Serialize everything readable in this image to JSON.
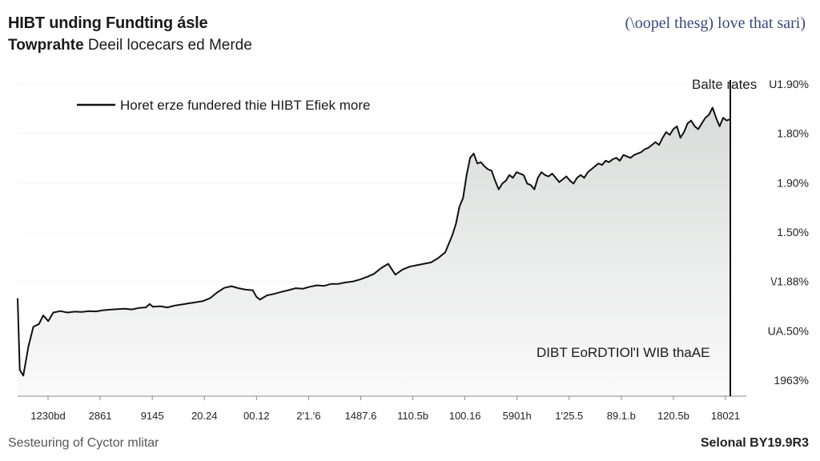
{
  "header": {
    "title": "HIBT unding Fundting ásle",
    "subtitle_bold": "Towprahte",
    "subtitle_rest": " Deeil locecars ed Merde",
    "top_right": "(\\oopel thesg) love that sari)"
  },
  "footer": {
    "left": "Sesteuring of Cyctor mlitar",
    "right": "Selonal BY19.9R3"
  },
  "chart_data": {
    "type": "area",
    "title": "HIBT unding Fundting ásle",
    "legend": "Horet erze fundered thie HIBT Efiek more",
    "y_axis_title": "Balte rates",
    "annotation": "DIBT EoRDTIOl'I WIB thaAE",
    "x_tick_labels": [
      "1230bd",
      "2861",
      "9145",
      "20.24",
      "00.12",
      "2'1.'6",
      "1487.6",
      "110.5b",
      "100.16",
      "5901h",
      "1'25.5",
      "89.1.b",
      "120.5b",
      "18021"
    ],
    "y_tick_labels": [
      "U1.90%",
      "1.80%",
      "1.90%",
      "1.50%",
      "\\/1.88%",
      "UA.50%",
      "1963%"
    ],
    "y_range": [
      0,
      100
    ],
    "x_range": [
      0,
      100
    ],
    "series": [
      {
        "name": "Horet erze fundered thie HIBT Efiek more",
        "points": [
          [
            0,
            30
          ],
          [
            0.3,
            5
          ],
          [
            0.8,
            3
          ],
          [
            1.5,
            13
          ],
          [
            2.2,
            20
          ],
          [
            3,
            21
          ],
          [
            3.6,
            24
          ],
          [
            4.3,
            22
          ],
          [
            5,
            25
          ],
          [
            6,
            25.5
          ],
          [
            7,
            25
          ],
          [
            8,
            25.3
          ],
          [
            9,
            25.2
          ],
          [
            10,
            25.5
          ],
          [
            11,
            25.4
          ],
          [
            12,
            25.8
          ],
          [
            13,
            26
          ],
          [
            14,
            26.2
          ],
          [
            15,
            26.3
          ],
          [
            16,
            26.1
          ],
          [
            17,
            26.6
          ],
          [
            18,
            26.8
          ],
          [
            18.5,
            28
          ],
          [
            19,
            27
          ],
          [
            20,
            27.2
          ],
          [
            21,
            26.8
          ],
          [
            22,
            27.4
          ],
          [
            23,
            27.8
          ],
          [
            24,
            28.2
          ],
          [
            25,
            28.6
          ],
          [
            26,
            29
          ],
          [
            27,
            30
          ],
          [
            28,
            32
          ],
          [
            29,
            33.6
          ],
          [
            30,
            34.2
          ],
          [
            31,
            33.5
          ],
          [
            32,
            33
          ],
          [
            33,
            32.8
          ],
          [
            33.5,
            30.5
          ],
          [
            34,
            29.5
          ],
          [
            35,
            31
          ],
          [
            36,
            31.5
          ],
          [
            37,
            32.2
          ],
          [
            38,
            32.8
          ],
          [
            39,
            33.5
          ],
          [
            40,
            33.3
          ],
          [
            41,
            34
          ],
          [
            42,
            34.5
          ],
          [
            43,
            34.3
          ],
          [
            44,
            35
          ],
          [
            45,
            35
          ],
          [
            46,
            35.5
          ],
          [
            47,
            35.8
          ],
          [
            48,
            36.5
          ],
          [
            49,
            37.4
          ],
          [
            50,
            38.5
          ],
          [
            51,
            40.5
          ],
          [
            52,
            42
          ],
          [
            52.8,
            39
          ],
          [
            53,
            38.2
          ],
          [
            54,
            40
          ],
          [
            55,
            41
          ],
          [
            56,
            41.5
          ],
          [
            57,
            42
          ],
          [
            58,
            42.5
          ],
          [
            59,
            44
          ],
          [
            60,
            46
          ],
          [
            61,
            52
          ],
          [
            61.5,
            56
          ],
          [
            62,
            62
          ],
          [
            62.5,
            65
          ],
          [
            63,
            73
          ],
          [
            63.5,
            79
          ],
          [
            64,
            80.5
          ],
          [
            64.5,
            77
          ],
          [
            65,
            77.5
          ],
          [
            65.5,
            76
          ],
          [
            66,
            75
          ],
          [
            66.5,
            74.5
          ],
          [
            67,
            71
          ],
          [
            67.5,
            68
          ],
          [
            68,
            70
          ],
          [
            68.5,
            71
          ],
          [
            69,
            73
          ],
          [
            69.5,
            72
          ],
          [
            70,
            74
          ],
          [
            70.5,
            73.5
          ],
          [
            71,
            73
          ],
          [
            71.5,
            70
          ],
          [
            72,
            69.5
          ],
          [
            72.5,
            68
          ],
          [
            73,
            72
          ],
          [
            73.5,
            74
          ],
          [
            74,
            73
          ],
          [
            74.5,
            72.5
          ],
          [
            75,
            73.5
          ],
          [
            75.5,
            72
          ],
          [
            76,
            70.5
          ],
          [
            76.5,
            71.5
          ],
          [
            77,
            72.5
          ],
          [
            77.5,
            71
          ],
          [
            78,
            70
          ],
          [
            78.5,
            72
          ],
          [
            79,
            73
          ],
          [
            79.5,
            72
          ],
          [
            80,
            74
          ],
          [
            80.5,
            75
          ],
          [
            81,
            76
          ],
          [
            81.5,
            77
          ],
          [
            82,
            76.5
          ],
          [
            82.5,
            78
          ],
          [
            83,
            77.5
          ],
          [
            83.5,
            78.5
          ],
          [
            84,
            79
          ],
          [
            84.5,
            78
          ],
          [
            85,
            80
          ],
          [
            85.5,
            79.5
          ],
          [
            86,
            79
          ],
          [
            86.5,
            80
          ],
          [
            87,
            80.5
          ],
          [
            87.5,
            81
          ],
          [
            88,
            82
          ],
          [
            88.5,
            82.5
          ],
          [
            89,
            83.5
          ],
          [
            89.5,
            84.5
          ],
          [
            90,
            83.5
          ],
          [
            90.5,
            86
          ],
          [
            91,
            88
          ],
          [
            91.5,
            87
          ],
          [
            92,
            89
          ],
          [
            92.5,
            90
          ],
          [
            93,
            86
          ],
          [
            93.5,
            88
          ],
          [
            94,
            91
          ],
          [
            94.5,
            92
          ],
          [
            95,
            90
          ],
          [
            95.5,
            89
          ],
          [
            96,
            91
          ],
          [
            96.5,
            93
          ],
          [
            97,
            94
          ],
          [
            97.5,
            96.5
          ],
          [
            98,
            93
          ],
          [
            98.5,
            90
          ],
          [
            99,
            93
          ],
          [
            99.5,
            92
          ],
          [
            100,
            92.5
          ]
        ]
      }
    ]
  },
  "colors": {
    "line": "#111111",
    "fill_top": "#d9dcda",
    "fill_bottom": "#fafafa",
    "axis": "#888888",
    "vline": "#111111",
    "grid": "#ececec"
  }
}
